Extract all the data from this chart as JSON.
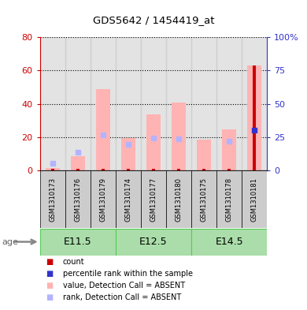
{
  "title": "GDS5642 / 1454419_at",
  "samples": [
    "GSM1310173",
    "GSM1310176",
    "GSM1310179",
    "GSM1310174",
    "GSM1310177",
    "GSM1310180",
    "GSM1310175",
    "GSM1310178",
    "GSM1310181"
  ],
  "value_absent": [
    1.5,
    8.5,
    49.0,
    19.5,
    33.5,
    41.0,
    18.5,
    24.5,
    63.0
  ],
  "rank_absent": [
    5.5,
    13.5,
    26.5,
    19.5,
    24.5,
    23.5,
    null,
    22.0,
    30.0
  ],
  "count_red": [
    1.2,
    1.2,
    1.2,
    1.2,
    1.2,
    1.2,
    1.2,
    1.2,
    63.0
  ],
  "percentile_blue": [
    null,
    null,
    null,
    null,
    null,
    null,
    null,
    null,
    30.0
  ],
  "ylim_left": [
    0,
    80
  ],
  "ylim_right": [
    0,
    100
  ],
  "left_tick_labels": [
    "0",
    "20",
    "40",
    "60",
    "80"
  ],
  "right_tick_labels": [
    "0",
    "25",
    "50",
    "75",
    "100%"
  ],
  "color_count": "#cc0000",
  "color_percentile": "#3333cc",
  "color_value_absent": "#ffb3b3",
  "color_rank_absent": "#b3b3ff",
  "color_axis_left": "#cc0000",
  "color_axis_right": "#3333cc",
  "age_label": "age",
  "groups": [
    {
      "label": "E11.5",
      "start": 0,
      "end": 2
    },
    {
      "label": "E12.5",
      "start": 3,
      "end": 5
    },
    {
      "label": "E14.5",
      "start": 6,
      "end": 8
    }
  ],
  "group_color_light": "#90ee90",
  "group_color_dark": "#55cc55",
  "sample_bg_color": "#cccccc",
  "legend_items": [
    {
      "color": "#cc0000",
      "label": "count"
    },
    {
      "color": "#3333cc",
      "label": "percentile rank within the sample"
    },
    {
      "color": "#ffb3b3",
      "label": "value, Detection Call = ABSENT"
    },
    {
      "color": "#b3b3ff",
      "label": "rank, Detection Call = ABSENT"
    }
  ]
}
